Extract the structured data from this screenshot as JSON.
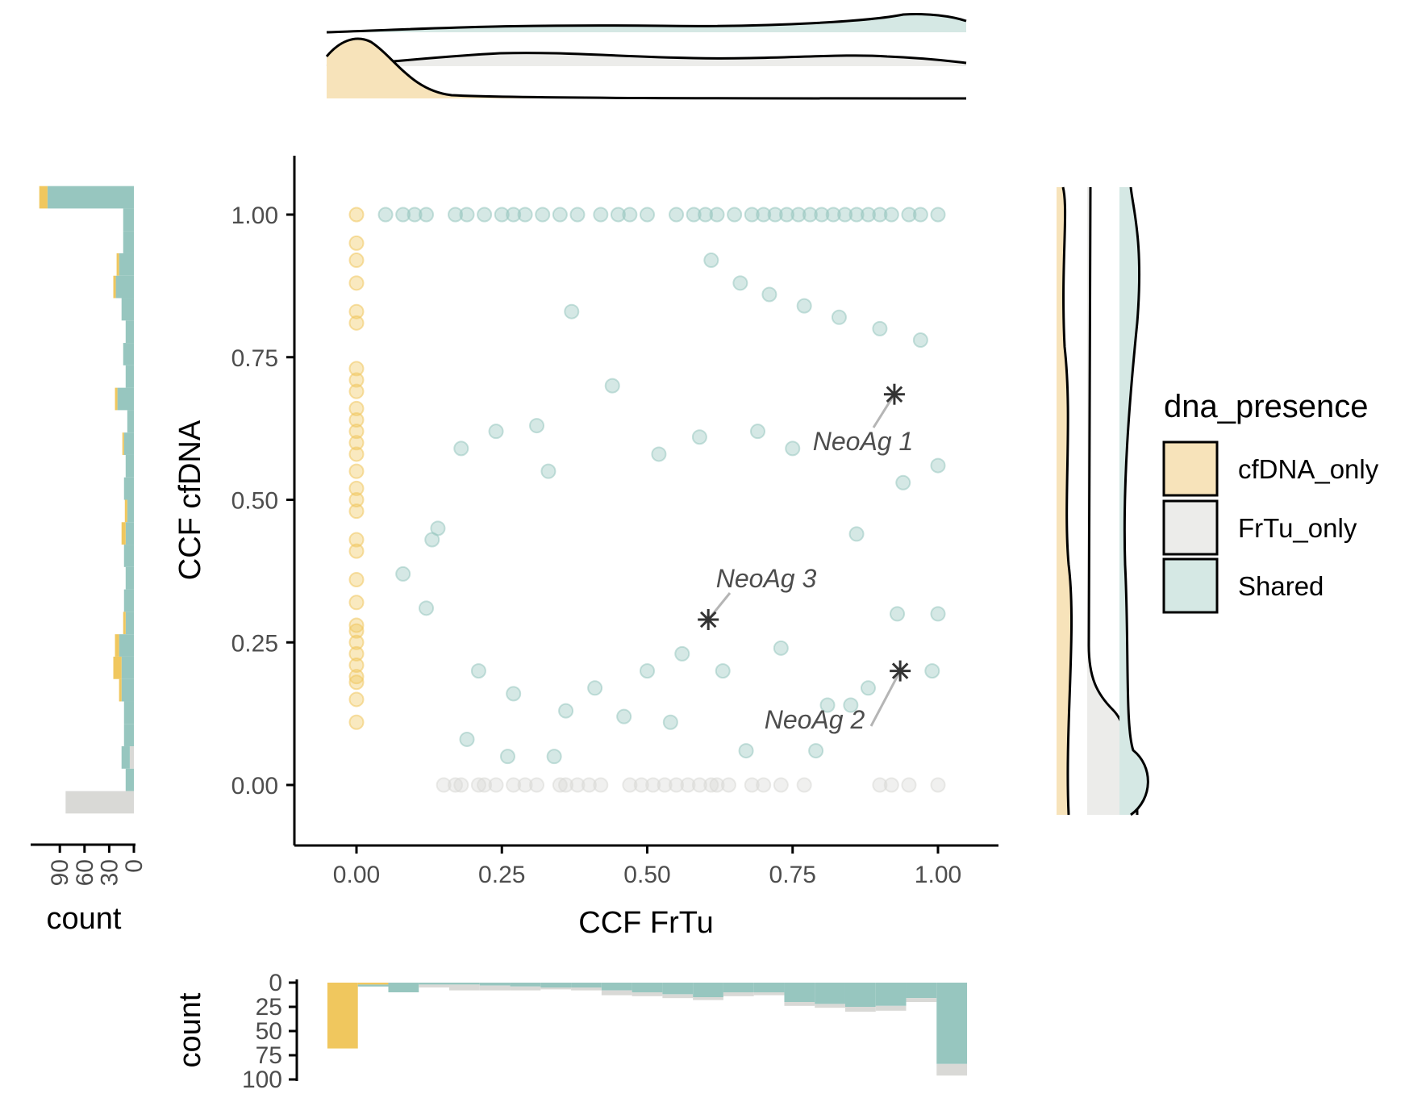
{
  "chart_data": {
    "type": "scatter",
    "xlabel": "CCF FrTu",
    "ylabel": "CCF cfDNA",
    "xlim": [
      -0.1,
      1.1
    ],
    "ylim": [
      -0.1,
      1.1
    ],
    "x_ticks": [
      "0.00",
      "0.25",
      "0.50",
      "0.75",
      "1.00"
    ],
    "y_ticks": [
      "0.00",
      "0.25",
      "0.50",
      "0.75",
      "1.00"
    ],
    "legend": {
      "title": "dna_presence",
      "position": "right",
      "items": [
        {
          "label": "cfDNA_only",
          "color": "#F0C75E"
        },
        {
          "label": "FrTu_only",
          "color": "#D9D9D6"
        },
        {
          "label": "Shared",
          "color": "#97C6BF"
        }
      ]
    },
    "colors": {
      "cfDNA_only": "#F0C75E",
      "FrTu_only": "#D9D9D6",
      "Shared": "#97C6BF"
    },
    "series": [
      {
        "name": "cfDNA_only",
        "x": 0.0,
        "y": [
          1.0,
          0.95,
          0.92,
          0.88,
          0.83,
          0.81,
          0.73,
          0.71,
          0.69,
          0.66,
          0.64,
          0.62,
          0.6,
          0.58,
          0.55,
          0.52,
          0.5,
          0.48,
          0.43,
          0.41,
          0.36,
          0.32,
          0.28,
          0.27,
          0.25,
          0.23,
          0.21,
          0.19,
          0.18,
          0.15,
          0.11
        ]
      },
      {
        "name": "FrTu_only",
        "x": [
          0.15,
          0.17,
          0.18,
          0.21,
          0.22,
          0.24,
          0.27,
          0.29,
          0.31,
          0.35,
          0.36,
          0.38,
          0.4,
          0.42,
          0.47,
          0.49,
          0.51,
          0.53,
          0.55,
          0.57,
          0.59,
          0.61,
          0.62,
          0.64,
          0.68,
          0.7,
          0.73,
          0.77,
          0.9,
          0.92,
          0.95,
          1.0
        ],
        "y": 0.0
      },
      {
        "name": "Shared",
        "x": [
          0.05,
          0.08,
          0.1,
          0.12,
          0.17,
          0.19,
          0.22,
          0.25,
          0.27,
          0.29,
          0.32,
          0.35,
          0.38,
          0.42,
          0.45,
          0.47,
          0.5,
          0.55,
          0.58,
          0.6,
          0.62,
          0.65,
          0.68,
          0.7,
          0.72,
          0.74,
          0.76,
          0.78,
          0.8,
          0.82,
          0.84,
          0.86,
          0.88,
          0.9,
          0.92,
          0.95,
          0.97,
          1.0,
          0.14,
          0.31,
          0.37,
          0.61,
          0.66,
          0.71,
          0.77,
          0.83,
          0.9,
          0.97,
          0.08,
          0.12,
          0.18,
          0.24,
          0.33,
          0.44,
          0.52,
          0.59,
          0.69,
          0.75,
          0.86,
          0.94,
          1.0,
          0.21,
          0.27,
          0.36,
          0.41,
          0.5,
          0.56,
          0.63,
          0.73,
          0.81,
          0.88,
          0.99,
          0.13,
          0.19,
          0.26,
          0.34,
          0.46,
          0.54,
          0.67,
          0.79,
          0.85,
          0.93,
          1.0
        ],
        "y": [
          1.0,
          1.0,
          1.0,
          1.0,
          1.0,
          1.0,
          1.0,
          1.0,
          1.0,
          1.0,
          1.0,
          1.0,
          1.0,
          1.0,
          1.0,
          1.0,
          1.0,
          1.0,
          1.0,
          1.0,
          1.0,
          1.0,
          1.0,
          1.0,
          1.0,
          1.0,
          1.0,
          1.0,
          1.0,
          1.0,
          1.0,
          1.0,
          1.0,
          1.0,
          1.0,
          1.0,
          1.0,
          1.0,
          0.45,
          0.63,
          0.83,
          0.92,
          0.88,
          0.86,
          0.84,
          0.82,
          0.8,
          0.78,
          0.37,
          0.31,
          0.59,
          0.62,
          0.55,
          0.7,
          0.58,
          0.61,
          0.62,
          0.59,
          0.44,
          0.53,
          0.56,
          0.2,
          0.16,
          0.13,
          0.17,
          0.2,
          0.23,
          0.2,
          0.24,
          0.14,
          0.17,
          0.2,
          0.43,
          0.08,
          0.05,
          0.05,
          0.12,
          0.11,
          0.06,
          0.06,
          0.14,
          0.3,
          0.3
        ]
      }
    ],
    "annotations": [
      {
        "label": "NeoAg 1",
        "x": 0.925,
        "y": 0.685
      },
      {
        "label": "NeoAg 2",
        "x": 0.935,
        "y": 0.2
      },
      {
        "label": "NeoAg 3",
        "x": 0.605,
        "y": 0.29
      }
    ],
    "marginal_left": {
      "xlabel": "count",
      "ticks": [
        "90",
        "60",
        "30",
        "0"
      ],
      "bin_counts_shared": [
        105,
        13,
        13,
        18,
        22,
        15,
        10,
        13,
        10,
        20,
        8,
        12,
        10,
        12,
        8,
        10,
        12,
        10,
        12,
        10,
        18,
        15,
        15,
        12,
        12,
        10,
        10,
        0
      ],
      "bin_counts_cfDNA": [
        10,
        0,
        0,
        3,
        3,
        0,
        0,
        0,
        0,
        3,
        0,
        2,
        0,
        0,
        3,
        5,
        0,
        0,
        0,
        3,
        5,
        10,
        3,
        0,
        0,
        0,
        0,
        0
      ],
      "bin_counts_frtu": [
        0,
        0,
        0,
        0,
        0,
        0,
        0,
        0,
        0,
        0,
        0,
        0,
        0,
        0,
        0,
        0,
        0,
        0,
        0,
        0,
        0,
        0,
        0,
        0,
        0,
        5,
        0,
        83
      ]
    },
    "marginal_bottom": {
      "ylabel": "count",
      "ticks": [
        "0",
        "25",
        "50",
        "75",
        "100"
      ],
      "bin_counts_cfDNA": [
        68,
        2,
        0,
        0,
        0,
        0,
        0,
        0,
        0,
        0,
        0,
        0,
        0,
        0,
        0,
        0,
        0,
        0,
        0,
        0,
        0
      ],
      "bin_counts_shared": [
        0,
        2,
        10,
        2,
        2,
        3,
        4,
        5,
        5,
        8,
        10,
        12,
        15,
        10,
        10,
        20,
        22,
        25,
        24,
        16,
        84
      ],
      "bin_counts_frtu": [
        0,
        0,
        0,
        3,
        6,
        5,
        4,
        2,
        3,
        5,
        4,
        4,
        3,
        4,
        3,
        4,
        4,
        5,
        5,
        4,
        12
      ]
    }
  }
}
